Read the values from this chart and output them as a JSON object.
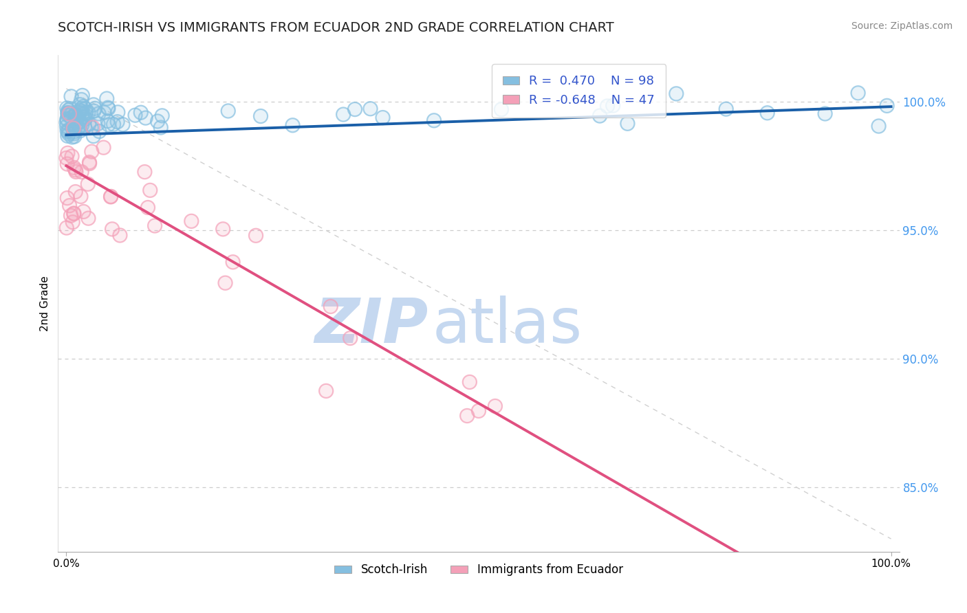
{
  "title": "SCOTCH-IRISH VS IMMIGRANTS FROM ECUADOR 2ND GRADE CORRELATION CHART",
  "source_text": "Source: ZipAtlas.com",
  "ylabel": "2nd Grade",
  "right_yticks": [
    85.0,
    90.0,
    95.0,
    100.0
  ],
  "right_ytick_labels": [
    "85.0%",
    "90.0%",
    "95.0%",
    "100.0%"
  ],
  "series1_label": "Scotch-Irish",
  "series1_R": 0.47,
  "series1_N": 98,
  "series1_color": "#85bfe0",
  "series1_edge_color": "#85bfe0",
  "series1_line_color": "#1a5fa8",
  "series2_label": "Immigrants from Ecuador",
  "series2_R": -0.648,
  "series2_N": 47,
  "series2_color": "#f4a0b8",
  "series2_edge_color": "#f4a0b8",
  "series2_line_color": "#e05080",
  "watermark_zip_color": "#c5d8f0",
  "watermark_atlas_color": "#c5d8f0",
  "background_color": "#ffffff",
  "grid_color": "#cccccc",
  "diag_line_color": "#d0d0d0",
  "right_axis_color": "#4499ee",
  "title_fontsize": 14,
  "legend_fontsize": 13,
  "y_min": 82.5,
  "y_max": 101.8
}
